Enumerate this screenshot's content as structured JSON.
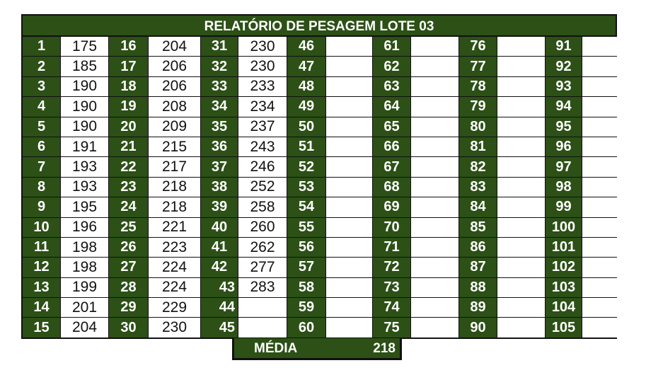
{
  "title": "RELATÓRIO DE PESAGEM LOTE  03",
  "colors": {
    "header_green": "#2c5016",
    "border": "#111111"
  },
  "weights": [
    175,
    185,
    190,
    190,
    190,
    191,
    193,
    193,
    195,
    196,
    198,
    198,
    199,
    201,
    204,
    204,
    206,
    206,
    208,
    209,
    215,
    217,
    218,
    218,
    221,
    223,
    224,
    224,
    229,
    230,
    230,
    230,
    233,
    234,
    237,
    243,
    246,
    252,
    258,
    260,
    262,
    277,
    283
  ],
  "total_slots": 105,
  "rows_per_column": 15,
  "media": {
    "label": "MÉDIA",
    "value": "218"
  }
}
